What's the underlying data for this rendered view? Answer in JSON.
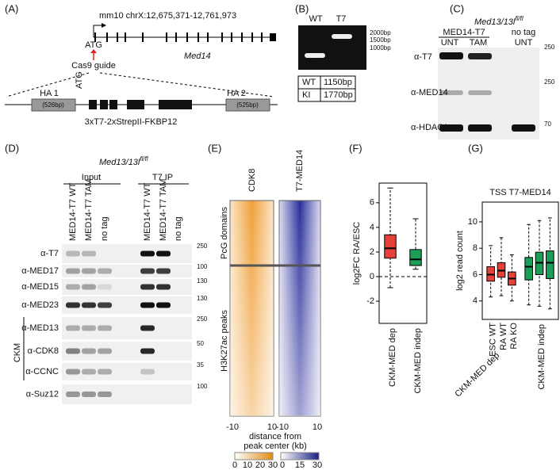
{
  "panels": {
    "A": {
      "label": "(A)",
      "locus": "mm10 chrX:12,675,371-12,761,973",
      "gene": "Med14",
      "atg": "ATG",
      "guide": "Cas9 guide",
      "construct_atg": "ATG",
      "ha1": "HA 1",
      "ha1_size": "(526bp)",
      "ha2": "HA 2",
      "ha2_size": "(525bp)",
      "tag": "3xT7-2xStrepII-FKBP12"
    },
    "B": {
      "label": "(B)",
      "lanes": [
        "WT",
        "T7"
      ],
      "ladder": [
        "2000bp",
        "1500bp",
        "1000bp"
      ],
      "table": [
        [
          "WT",
          "1150bp"
        ],
        [
          "KI",
          "1770bp"
        ]
      ]
    },
    "C": {
      "label": "(C)",
      "genotype": "Med13/13l",
      "genotype_sup": "fl/fl",
      "group_tagged": "MED14-T7",
      "group_untagged": "no tag",
      "lanes": [
        "UNT",
        "TAM",
        "UNT"
      ],
      "rows": [
        "α-T7",
        "α-MED14",
        "α-HDAC1"
      ],
      "markers": [
        "250",
        "250",
        "70"
      ]
    },
    "D": {
      "label": "(D)",
      "genotype": "Med13/13l",
      "genotype_sup": "fl/fl",
      "input": "Input",
      "ip": "T7 IP",
      "lanes": [
        "MED14-T7 WT",
        "MED14-T7 TAM",
        "no tag",
        "MED14-T7 WT",
        "MED14-T7 TAM",
        "no tag"
      ],
      "rows": [
        "α-T7",
        "α-MED17",
        "α-MED15",
        "α-MED23",
        "α-MED13",
        "α-CDK8",
        "α-CCNC",
        "α-Suz12"
      ],
      "markers": [
        "250",
        "100",
        "130",
        "130",
        "250",
        "50",
        "35",
        "100"
      ],
      "ckm": "CKM"
    },
    "E": {
      "label": "(E)",
      "columns": [
        "CDK8",
        "T7-MED14"
      ],
      "regions": [
        "PcG domains",
        "H3K27ac peaks"
      ],
      "xticks": [
        "-10",
        "10",
        "-10",
        "10"
      ],
      "xlabel_1": "distance from",
      "xlabel_2": "peak center (kb)",
      "colorbar_ticks": [
        [
          "0",
          "10",
          "20",
          "30"
        ],
        [
          "0",
          "15",
          "30"
        ]
      ]
    }
  },
  "chart_data": [
    {
      "type": "box",
      "panel": "(F)",
      "ylabel": "log2FC RA/ESC",
      "ylim": [
        -3.8,
        7.6
      ],
      "yticks": [
        -2,
        0,
        2,
        4,
        6
      ],
      "reference_line": 0,
      "series": [
        {
          "name": "CKM-MED dep",
          "color": "#e5403a",
          "categories": [
            null
          ],
          "low": [
            -0.9
          ],
          "q1": [
            1.5
          ],
          "median": [
            2.3
          ],
          "q3": [
            3.4
          ],
          "high": [
            7.2
          ]
        },
        {
          "name": "CKM-MED indep",
          "color": "#1b9e55",
          "categories": [
            null
          ],
          "low": [
            0.6
          ],
          "q1": [
            0.9
          ],
          "median": [
            1.4
          ],
          "q3": [
            2.2
          ],
          "high": [
            4.7
          ]
        }
      ]
    },
    {
      "type": "box",
      "panel": "(G)",
      "title": "TSS T7-MED14",
      "ylabel": "log2 read count",
      "ylim": [
        2.6,
        11.5
      ],
      "yticks": [
        4,
        6,
        8,
        10
      ],
      "series": [
        {
          "name": "CKM-MED dep",
          "color": "#e5403a",
          "categories": [
            "ESC WT",
            "RA WT",
            "RA KO"
          ],
          "low": [
            4.3,
            4.4,
            4.0
          ],
          "q1": [
            5.5,
            5.8,
            5.2
          ],
          "median": [
            6.0,
            6.3,
            5.7
          ],
          "q3": [
            6.6,
            6.9,
            6.2
          ],
          "high": [
            8.2,
            8.8,
            7.5
          ]
        },
        {
          "name": "CKM-MED indep",
          "color": "#1b9e55",
          "categories": [
            null,
            null,
            null
          ],
          "low": [
            3.7,
            3.6,
            3.4
          ],
          "q1": [
            5.6,
            6.0,
            5.7
          ],
          "median": [
            6.6,
            6.9,
            6.9
          ],
          "q3": [
            7.3,
            7.7,
            7.8
          ],
          "high": [
            9.8,
            10.1,
            10.3
          ]
        }
      ]
    }
  ]
}
